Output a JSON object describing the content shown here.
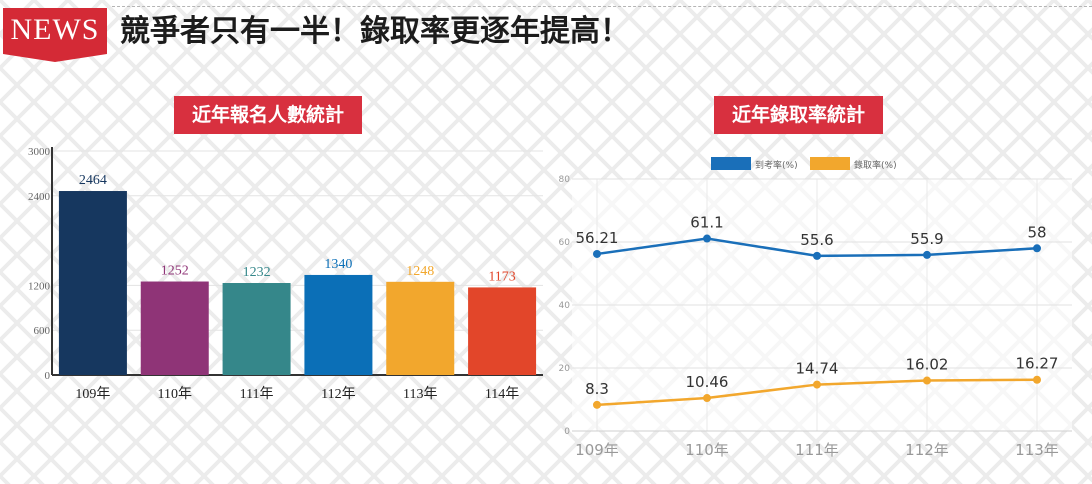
{
  "header": {
    "badge": "NEWS",
    "headline": "競爭者只有一半！錄取率更逐年提高！"
  },
  "chart_data": [
    {
      "type": "bar",
      "title": "近年報名人數統計",
      "categories": [
        "109年",
        "110年",
        "111年",
        "112年",
        "113年",
        "114年"
      ],
      "values": [
        2464,
        1252,
        1232,
        1340,
        1248,
        1173
      ],
      "colors": [
        "#16375f",
        "#8f3477",
        "#35878a",
        "#0b6fb7",
        "#f2a72d",
        "#e2462a"
      ],
      "ylim": [
        0,
        3000
      ],
      "yticks": [
        0,
        600,
        1200,
        2400,
        3000
      ],
      "xlabel": "",
      "ylabel": ""
    },
    {
      "type": "line",
      "title": "近年錄取率統計",
      "categories": [
        "109年",
        "110年",
        "111年",
        "112年",
        "113年"
      ],
      "series": [
        {
          "name": "到考率(%)",
          "color": "#1a6fb9",
          "values": [
            56.21,
            61.1,
            55.6,
            55.9,
            58
          ],
          "labels": [
            "56.21",
            "61.1",
            "55.6",
            "55.9",
            "58"
          ]
        },
        {
          "name": "錄取率(%)",
          "color": "#f2a72d",
          "values": [
            8.3,
            10.46,
            14.74,
            16.02,
            16.27
          ],
          "labels": [
            "8.3",
            "10.46",
            "14.74",
            "16.02",
            "16.27"
          ]
        }
      ],
      "ylim": [
        0,
        80
      ],
      "yticks": [
        0,
        20,
        40,
        60,
        80
      ],
      "legend": "top",
      "grid": true,
      "xlabel": "",
      "ylabel": ""
    }
  ]
}
